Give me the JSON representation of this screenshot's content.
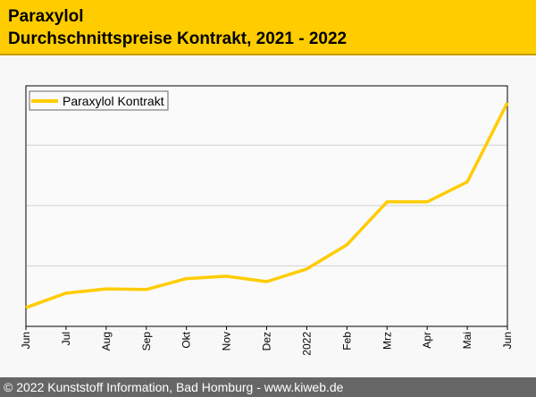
{
  "header": {
    "title": "Paraxylol",
    "subtitle": "Durchschnittspreise Kontrakt, 2021 - 2022"
  },
  "footer": {
    "text": "© 2022 Kunststoff Information, Bad Homburg - www.kiweb.de"
  },
  "chart_data": {
    "type": "line",
    "title": "Paraxylol Durchschnittspreise Kontrakt, 2021 - 2022",
    "xlabel": "",
    "ylabel": "",
    "categories": [
      "Jun",
      "Jul",
      "Aug",
      "Sep",
      "Okt",
      "Nov",
      "Dez",
      "2022",
      "Feb",
      "Mrz",
      "Apr",
      "Mai",
      "Jun"
    ],
    "series": [
      {
        "name": "Paraxylol Kontrakt",
        "color": "#ffcc00",
        "values": [
          0.31,
          0.55,
          0.62,
          0.61,
          0.79,
          0.83,
          0.74,
          0.95,
          1.35,
          2.06,
          2.06,
          2.39,
          3.7
        ]
      }
    ],
    "ylim": [
      0,
      3.98
    ],
    "yticks_unlabeled": [
      1,
      2,
      3
    ],
    "grid": true,
    "legend": "top-left"
  }
}
